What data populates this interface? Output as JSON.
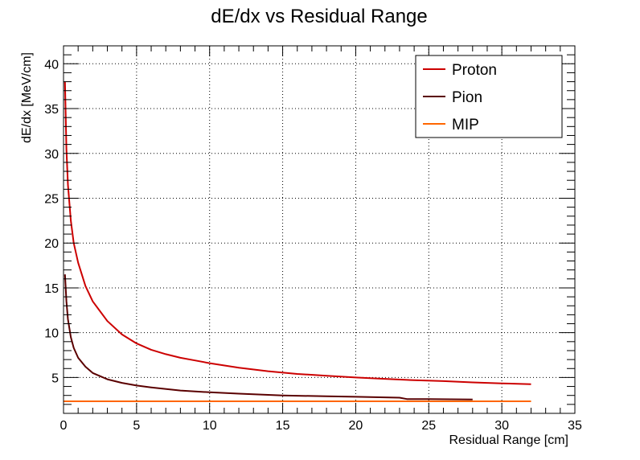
{
  "chart_data": {
    "type": "line",
    "title": "dE/dx vs Residual Range",
    "xlabel": "Residual Range [cm]",
    "ylabel": "dE/dx [MeV/cm]",
    "xlim": [
      0,
      35
    ],
    "ylim": [
      1,
      42
    ],
    "xticks": [
      0,
      5,
      10,
      15,
      20,
      25,
      30,
      35
    ],
    "yticks": [
      5,
      10,
      15,
      20,
      25,
      30,
      35,
      40
    ],
    "grid": true,
    "legend_position": "top-right",
    "series": [
      {
        "name": "Proton",
        "color": "#cc0000",
        "x": [
          0.1,
          0.2,
          0.3,
          0.5,
          0.7,
          1,
          1.5,
          2,
          3,
          4,
          5,
          6,
          7,
          8,
          9,
          10,
          12,
          14,
          16,
          18,
          20,
          22,
          24,
          26,
          28,
          30,
          32
        ],
        "y": [
          38.0,
          30.5,
          26.5,
          22.5,
          20.0,
          17.8,
          15.2,
          13.5,
          11.3,
          9.8,
          8.8,
          8.1,
          7.6,
          7.2,
          6.9,
          6.6,
          6.1,
          5.7,
          5.4,
          5.2,
          5.0,
          4.85,
          4.7,
          4.6,
          4.45,
          4.35,
          4.25
        ]
      },
      {
        "name": "Pion",
        "color": "#5a0000",
        "x": [
          0.1,
          0.2,
          0.3,
          0.5,
          0.7,
          1,
          1.5,
          2,
          3,
          4,
          5,
          6,
          8,
          10,
          12,
          15,
          18,
          20,
          23,
          23.5,
          25,
          28
        ],
        "y": [
          16.5,
          13.5,
          11.5,
          9.5,
          8.3,
          7.2,
          6.2,
          5.5,
          4.8,
          4.4,
          4.1,
          3.9,
          3.55,
          3.35,
          3.2,
          3.0,
          2.9,
          2.85,
          2.75,
          2.6,
          2.6,
          2.55
        ]
      },
      {
        "name": "MIP",
        "color": "#ff6600",
        "x": [
          0,
          32
        ],
        "y": [
          2.35,
          2.35
        ]
      }
    ]
  }
}
